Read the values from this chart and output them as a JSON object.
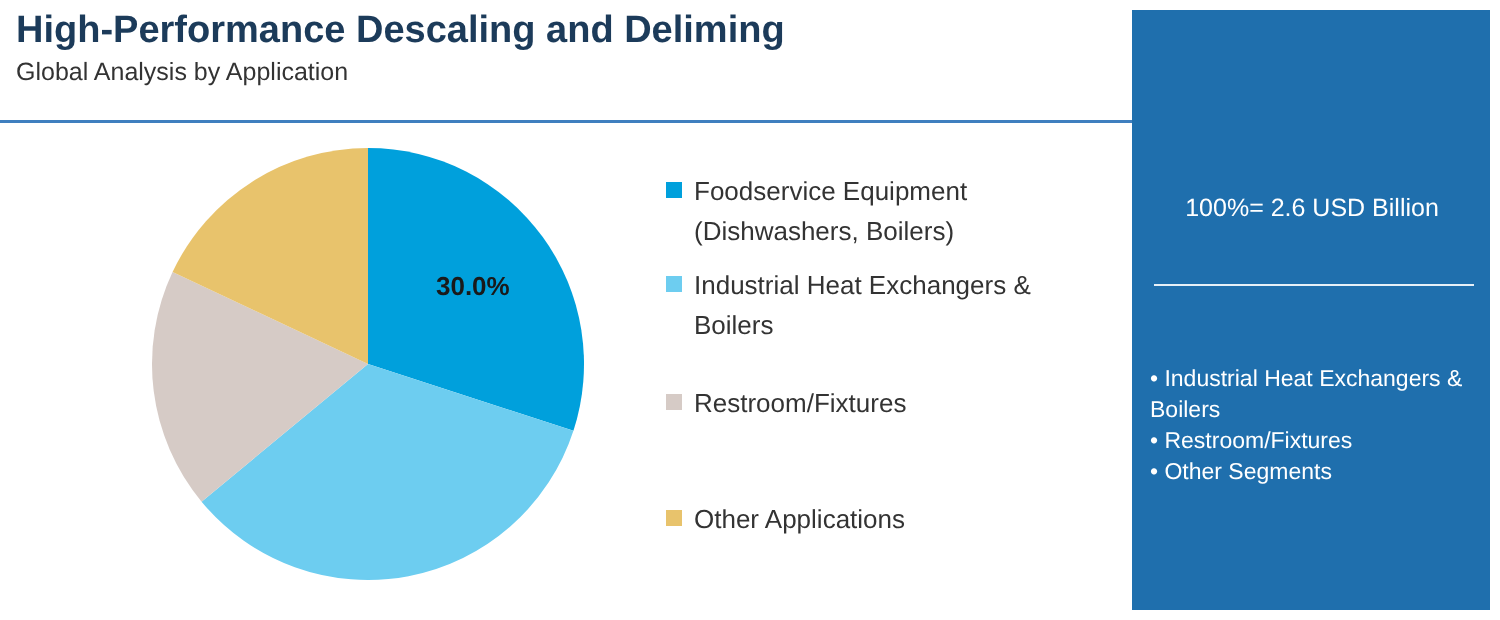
{
  "chart_data": {
    "type": "pie",
    "title": "High-Performance Descaling and Deliming",
    "subtitle": "Global Analysis by Application",
    "categories": [
      "Foodservice Equipment (Dishwashers, Boilers)",
      "Industrial Heat Exchangers & Boilers",
      "Restroom/Fixtures",
      "Other Applications"
    ],
    "values": [
      30,
      34,
      18,
      18
    ],
    "colors": [
      "#00a0dc",
      "#6dcdf0",
      "#d6cbc6",
      "#e8c36c"
    ],
    "value_labels": [
      "30.0%",
      null,
      null,
      null
    ],
    "legend": "right",
    "annotations": [
      "100%= 2.6 USD Billion",
      "• Industrial Heat Exchangers & Boilers",
      "• Restroom/Fixtures",
      "• Other Segments"
    ]
  }
}
